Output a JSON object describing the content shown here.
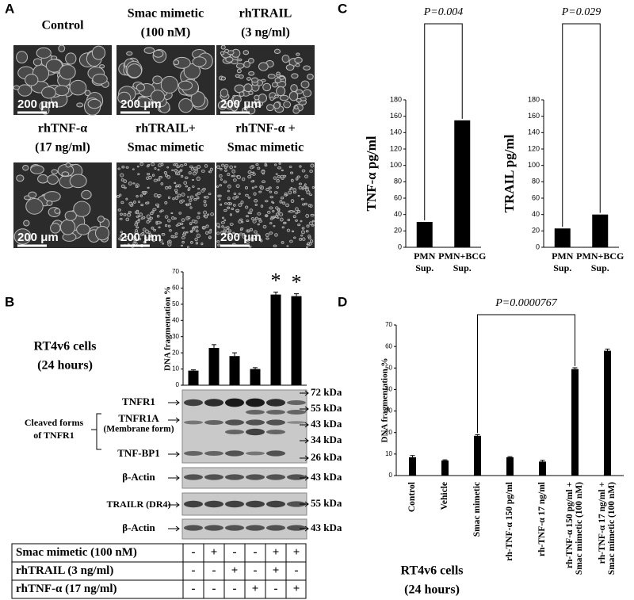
{
  "panel_labels": [
    "A",
    "B",
    "C",
    "D"
  ],
  "micrographs": [
    {
      "title": [
        "Control"
      ],
      "scale": "200 μm"
    },
    {
      "title": [
        "Smac mimetic",
        "(100 nM)"
      ],
      "scale": "200 μm"
    },
    {
      "title": [
        "rhTRAIL",
        "(3 ng/ml)"
      ],
      "scale": "200 μm"
    },
    {
      "title": [
        "rhTNF-α",
        "(17 ng/ml)"
      ],
      "scale": "200 μm"
    },
    {
      "title": [
        "rhTRAIL+",
        "Smac mimetic"
      ],
      "scale": "200 μm"
    },
    {
      "title": [
        "rhTNF-α +",
        "Smac mimetic"
      ],
      "scale": "200 μm"
    }
  ],
  "blot": {
    "caption": [
      "RT4v6 cells",
      "(24 hours)"
    ],
    "cleaved": [
      "Cleaved forms",
      "of TNFR1"
    ],
    "labels": [
      "TNFR1",
      "TNFR1A",
      "(Membrane form)",
      "TNF-BP1",
      "β-Actin",
      "TRAILR (DR4)",
      "β-Actin"
    ],
    "markers": [
      "72 kDa",
      "55 kDa",
      "43 kDa",
      "34 kDa",
      "26 kDa",
      "43 kDa",
      "55 kDa",
      "43 kDa"
    ]
  },
  "treatment_table": {
    "rows": [
      [
        "Smac mimetic (100 nM)",
        "-",
        "+",
        "-",
        "-",
        "+",
        "+"
      ],
      [
        "rhTRAIL (3 ng/ml)",
        "-",
        "-",
        "+",
        "-",
        "+",
        "-"
      ],
      [
        "rhTNF-α (17 ng/ml)",
        "-",
        "-",
        "-",
        "+",
        "-",
        "+"
      ]
    ]
  },
  "chart_data": [
    {
      "type": "bar",
      "ylabel": "DNA fragmentation %",
      "values": [
        9,
        23,
        18,
        10,
        56,
        55
      ],
      "errors": [
        0.5,
        2,
        2,
        0.8,
        1.5,
        1.5
      ],
      "annotations": [
        null,
        null,
        null,
        null,
        "*",
        "*"
      ],
      "ylim": [
        0,
        70
      ],
      "yticks": [
        0,
        10,
        20,
        30,
        40,
        50,
        60,
        70
      ],
      "color": "#000000"
    },
    {
      "type": "bar",
      "ylabel": "TNF-α pg/ml",
      "categories": [
        [
          "PMN",
          "Sup."
        ],
        [
          "PMN+BCG",
          "Sup."
        ]
      ],
      "values": [
        31,
        155
      ],
      "annotation": "P=0.004",
      "ylim": [
        0,
        180
      ],
      "yticks": [
        0,
        20,
        40,
        60,
        80,
        100,
        120,
        140,
        160,
        180
      ],
      "color": "#000000"
    },
    {
      "type": "bar",
      "ylabel": "TRAIL pg/ml",
      "categories": [
        [
          "PMN",
          "Sup."
        ],
        [
          "PMN+BCG",
          "Sup."
        ]
      ],
      "values": [
        23,
        40
      ],
      "annotation": "P=0.029",
      "ylim": [
        0,
        180
      ],
      "yticks": [
        0,
        20,
        40,
        60,
        80,
        100,
        120,
        140,
        160,
        180
      ],
      "color": "#000000"
    },
    {
      "type": "bar",
      "ylabel": "DNA fragmentation %",
      "categories": [
        [
          "Control"
        ],
        [
          "Vehicle"
        ],
        [
          "Smac mimetic"
        ],
        [
          "rh-TNF-α 150 pg/ml"
        ],
        [
          "rh-TNF-α 17 ng/ml"
        ],
        [
          "rh-TNF-α 150 pg/ml +",
          "Smac mimetic (100 nM)"
        ],
        [
          "rh-TNF-α 17 ng/ml +",
          "Smac mimetic (100 nM)"
        ]
      ],
      "values": [
        8.5,
        7,
        18.5,
        8.5,
        6.5,
        49.5,
        58
      ],
      "errors": [
        0.8,
        0.3,
        0.5,
        0.3,
        0.6,
        0.6,
        0.8
      ],
      "annotation": "P=0.0000767",
      "caption": [
        "RT4v6 cells",
        "(24 hours)"
      ],
      "ylim": [
        0,
        70
      ],
      "yticks": [
        0,
        10,
        20,
        30,
        40,
        50,
        60,
        70
      ],
      "color": "#000000"
    }
  ]
}
